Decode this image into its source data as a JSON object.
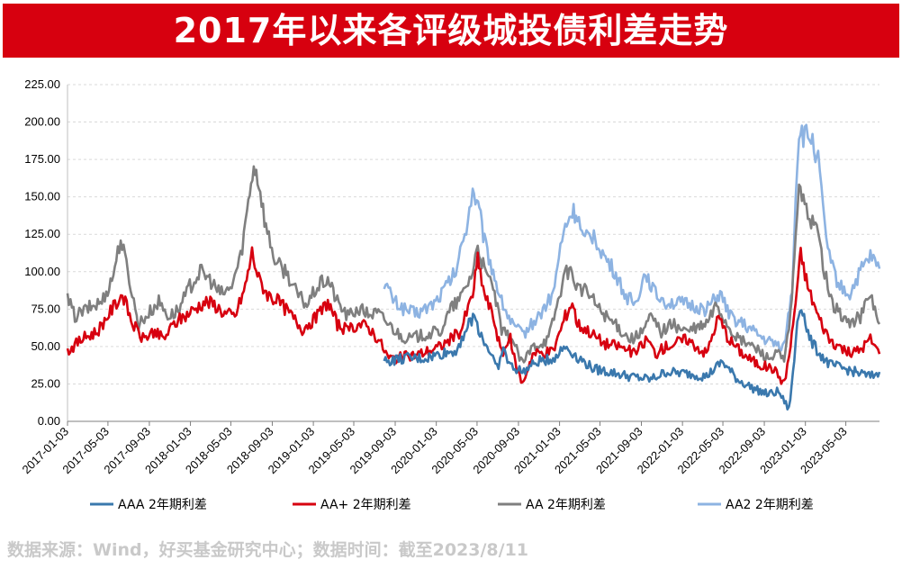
{
  "header": {
    "title": "2017年以来各评级城投债利差走势"
  },
  "footnote": "数据来源：Wind，好买基金研究中心；数据时间：截至2023/8/11",
  "colors": {
    "title_bg": "#d7000f",
    "AAA": "#3a78ad",
    "AA+": "#d7000f",
    "AA": "#7f7f7f",
    "AA2": "#8db3e2"
  },
  "chart_data": {
    "type": "line",
    "title": "",
    "xlabel": "",
    "ylabel": "",
    "ylim": [
      0,
      225
    ],
    "y_ticks": [
      "0.00",
      "25.00",
      "50.00",
      "75.00",
      "100.00",
      "125.00",
      "150.00",
      "175.00",
      "200.00",
      "225.00"
    ],
    "x_ticks": [
      "2017-01-03",
      "2017-05-03",
      "2017-09-03",
      "2018-01-03",
      "2018-05-03",
      "2018-09-03",
      "2019-01-03",
      "2019-05-03",
      "2019-09-03",
      "2020-01-03",
      "2020-05-03",
      "2020-09-03",
      "2021-01-03",
      "2021-05-03",
      "2021-09-03",
      "2022-01-03",
      "2022-05-03",
      "2022-09-03",
      "2023-01-03",
      "2023-05-03"
    ],
    "x_range": [
      "2017-01-03",
      "2023-08-11"
    ],
    "grid": "horizontal-dashed",
    "legend_position": "bottom",
    "series": [
      {
        "name": "AAA 2年期利差",
        "key": "AAA",
        "points": [
          [
            "2019-08-01",
            40
          ],
          [
            "2019-10-01",
            42
          ],
          [
            "2019-12-01",
            42
          ],
          [
            "2020-01-15",
            45
          ],
          [
            "2020-03-01",
            47
          ],
          [
            "2020-04-01",
            62
          ],
          [
            "2020-04-25",
            70
          ],
          [
            "2020-05-20",
            55
          ],
          [
            "2020-06-15",
            45
          ],
          [
            "2020-07-01",
            35
          ],
          [
            "2020-07-20",
            48
          ],
          [
            "2020-08-10",
            37
          ],
          [
            "2020-09-15",
            33
          ],
          [
            "2020-11-01",
            40
          ],
          [
            "2020-12-15",
            42
          ],
          [
            "2021-01-20",
            50
          ],
          [
            "2021-02-15",
            45
          ],
          [
            "2021-03-15",
            40
          ],
          [
            "2021-04-15",
            35
          ],
          [
            "2021-06-01",
            33
          ],
          [
            "2021-08-01",
            30
          ],
          [
            "2021-10-01",
            28
          ],
          [
            "2021-11-15",
            33
          ],
          [
            "2022-01-15",
            32
          ],
          [
            "2022-03-15",
            30
          ],
          [
            "2022-05-01",
            40
          ],
          [
            "2022-06-15",
            28
          ],
          [
            "2022-08-01",
            22
          ],
          [
            "2022-09-15",
            18
          ],
          [
            "2022-10-15",
            20
          ],
          [
            "2022-11-15",
            8
          ],
          [
            "2022-12-01",
            40
          ],
          [
            "2022-12-10",
            68
          ],
          [
            "2022-12-22",
            78
          ],
          [
            "2023-01-15",
            55
          ],
          [
            "2023-02-15",
            45
          ],
          [
            "2023-03-15",
            38
          ],
          [
            "2023-05-01",
            35
          ],
          [
            "2023-06-15",
            32
          ],
          [
            "2023-07-15",
            30
          ],
          [
            "2023-08-11",
            33
          ]
        ]
      },
      {
        "name": "AA+ 2年期利差",
        "key": "AA+",
        "points": [
          [
            "2017-01-03",
            47
          ],
          [
            "2017-02-15",
            55
          ],
          [
            "2017-04-01",
            60
          ],
          [
            "2017-05-15",
            75
          ],
          [
            "2017-06-15",
            85
          ],
          [
            "2017-07-15",
            65
          ],
          [
            "2017-08-15",
            55
          ],
          [
            "2017-09-15",
            60
          ],
          [
            "2017-10-15",
            55
          ],
          [
            "2017-11-15",
            65
          ],
          [
            "2017-12-15",
            70
          ],
          [
            "2018-01-15",
            75
          ],
          [
            "2018-02-15",
            80
          ],
          [
            "2018-03-15",
            78
          ],
          [
            "2018-04-15",
            72
          ],
          [
            "2018-05-15",
            70
          ],
          [
            "2018-06-15",
            90
          ],
          [
            "2018-07-05",
            113
          ],
          [
            "2018-07-25",
            95
          ],
          [
            "2018-08-20",
            85
          ],
          [
            "2018-10-01",
            78
          ],
          [
            "2018-11-01",
            70
          ],
          [
            "2018-12-01",
            62
          ],
          [
            "2019-01-15",
            70
          ],
          [
            "2019-02-15",
            80
          ],
          [
            "2019-03-15",
            65
          ],
          [
            "2019-04-15",
            60
          ],
          [
            "2019-05-15",
            65
          ],
          [
            "2019-06-15",
            63
          ],
          [
            "2019-07-15",
            55
          ],
          [
            "2019-08-15",
            42
          ],
          [
            "2019-10-01",
            43
          ],
          [
            "2019-11-15",
            45
          ],
          [
            "2020-01-15",
            50
          ],
          [
            "2020-02-15",
            55
          ],
          [
            "2020-03-15",
            60
          ],
          [
            "2020-04-20",
            85
          ],
          [
            "2020-05-05",
            108
          ],
          [
            "2020-05-25",
            85
          ],
          [
            "2020-06-20",
            70
          ],
          [
            "2020-07-15",
            45
          ],
          [
            "2020-08-10",
            55
          ],
          [
            "2020-08-25",
            38
          ],
          [
            "2020-09-15",
            25
          ],
          [
            "2020-10-15",
            45
          ],
          [
            "2020-12-15",
            47
          ],
          [
            "2021-01-20",
            70
          ],
          [
            "2021-02-10",
            80
          ],
          [
            "2021-02-25",
            65
          ],
          [
            "2021-04-01",
            60
          ],
          [
            "2021-05-15",
            52
          ],
          [
            "2021-07-01",
            50
          ],
          [
            "2021-08-15",
            45
          ],
          [
            "2021-09-20",
            55
          ],
          [
            "2021-10-15",
            45
          ],
          [
            "2021-11-15",
            50
          ],
          [
            "2022-01-15",
            55
          ],
          [
            "2022-03-15",
            45
          ],
          [
            "2022-04-20",
            70
          ],
          [
            "2022-05-20",
            55
          ],
          [
            "2022-07-01",
            45
          ],
          [
            "2022-08-15",
            38
          ],
          [
            "2022-10-01",
            35
          ],
          [
            "2022-11-01",
            25
          ],
          [
            "2022-11-20",
            50
          ],
          [
            "2022-12-05",
            80
          ],
          [
            "2022-12-20",
            112
          ],
          [
            "2023-01-10",
            90
          ],
          [
            "2023-02-10",
            70
          ],
          [
            "2023-03-15",
            55
          ],
          [
            "2023-04-15",
            50
          ],
          [
            "2023-05-15",
            45
          ],
          [
            "2023-06-15",
            48
          ],
          [
            "2023-07-15",
            55
          ],
          [
            "2023-08-11",
            45
          ]
        ]
      },
      {
        "name": "AA 2年期利差",
        "key": "AA",
        "points": [
          [
            "2017-01-03",
            82
          ],
          [
            "2017-01-25",
            70
          ],
          [
            "2017-03-01",
            75
          ],
          [
            "2017-04-15",
            80
          ],
          [
            "2017-05-15",
            95
          ],
          [
            "2017-06-10",
            122
          ],
          [
            "2017-07-01",
            100
          ],
          [
            "2017-08-01",
            65
          ],
          [
            "2017-09-01",
            72
          ],
          [
            "2017-10-01",
            80
          ],
          [
            "2017-11-01",
            70
          ],
          [
            "2017-12-01",
            75
          ],
          [
            "2018-01-01",
            90
          ],
          [
            "2018-02-01",
            100
          ],
          [
            "2018-03-01",
            95
          ],
          [
            "2018-04-01",
            85
          ],
          [
            "2018-05-01",
            88
          ],
          [
            "2018-06-01",
            110
          ],
          [
            "2018-06-20",
            140
          ],
          [
            "2018-07-10",
            172
          ],
          [
            "2018-07-25",
            160
          ],
          [
            "2018-08-15",
            130
          ],
          [
            "2018-09-15",
            105
          ],
          [
            "2018-10-15",
            100
          ],
          [
            "2018-11-15",
            85
          ],
          [
            "2018-12-15",
            78
          ],
          [
            "2019-01-15",
            90
          ],
          [
            "2019-02-15",
            95
          ],
          [
            "2019-03-15",
            80
          ],
          [
            "2019-04-15",
            70
          ],
          [
            "2019-05-15",
            75
          ],
          [
            "2019-06-15",
            72
          ],
          [
            "2019-07-15",
            72
          ],
          [
            "2019-08-15",
            65
          ],
          [
            "2019-09-15",
            58
          ],
          [
            "2019-10-15",
            55
          ],
          [
            "2019-12-01",
            58
          ],
          [
            "2020-01-15",
            60
          ],
          [
            "2020-02-15",
            75
          ],
          [
            "2020-03-15",
            82
          ],
          [
            "2020-04-20",
            100
          ],
          [
            "2020-05-05",
            118
          ],
          [
            "2020-05-25",
            100
          ],
          [
            "2020-06-20",
            90
          ],
          [
            "2020-07-15",
            60
          ],
          [
            "2020-08-15",
            55
          ],
          [
            "2020-09-15",
            38
          ],
          [
            "2020-10-15",
            50
          ],
          [
            "2020-12-01",
            55
          ],
          [
            "2021-01-15",
            95
          ],
          [
            "2021-02-01",
            102
          ],
          [
            "2021-02-25",
            90
          ],
          [
            "2021-04-01",
            85
          ],
          [
            "2021-05-01",
            75
          ],
          [
            "2021-06-15",
            65
          ],
          [
            "2021-08-01",
            55
          ],
          [
            "2021-09-01",
            58
          ],
          [
            "2021-10-01",
            70
          ],
          [
            "2021-11-01",
            60
          ],
          [
            "2021-12-01",
            65
          ],
          [
            "2022-01-15",
            60
          ],
          [
            "2022-02-15",
            62
          ],
          [
            "2022-03-15",
            65
          ],
          [
            "2022-04-15",
            78
          ],
          [
            "2022-05-15",
            65
          ],
          [
            "2022-06-15",
            55
          ],
          [
            "2022-07-15",
            52
          ],
          [
            "2022-08-15",
            48
          ],
          [
            "2022-09-15",
            42
          ],
          [
            "2022-10-15",
            45
          ],
          [
            "2022-11-01",
            40
          ],
          [
            "2022-11-20",
            70
          ],
          [
            "2022-12-05",
            120
          ],
          [
            "2022-12-15",
            163
          ],
          [
            "2023-01-01",
            140
          ],
          [
            "2023-01-20",
            135
          ],
          [
            "2023-02-10",
            125
          ],
          [
            "2023-03-01",
            100
          ],
          [
            "2023-03-20",
            80
          ],
          [
            "2023-04-15",
            72
          ],
          [
            "2023-05-15",
            65
          ],
          [
            "2023-06-15",
            70
          ],
          [
            "2023-07-15",
            85
          ],
          [
            "2023-08-11",
            65
          ]
        ]
      },
      {
        "name": "AA2 2年期利差",
        "key": "AA2",
        "points": [
          [
            "2019-08-01",
            93
          ],
          [
            "2019-09-01",
            80
          ],
          [
            "2019-10-01",
            75
          ],
          [
            "2019-11-01",
            72
          ],
          [
            "2019-12-01",
            75
          ],
          [
            "2020-01-01",
            80
          ],
          [
            "2020-02-01",
            90
          ],
          [
            "2020-03-01",
            100
          ],
          [
            "2020-04-01",
            130
          ],
          [
            "2020-04-20",
            155
          ],
          [
            "2020-05-10",
            140
          ],
          [
            "2020-05-25",
            120
          ],
          [
            "2020-06-20",
            100
          ],
          [
            "2020-07-15",
            80
          ],
          [
            "2020-08-15",
            65
          ],
          [
            "2020-09-15",
            58
          ],
          [
            "2020-11-01",
            70
          ],
          [
            "2020-12-15",
            85
          ],
          [
            "2021-01-01",
            110
          ],
          [
            "2021-01-20",
            130
          ],
          [
            "2021-02-10",
            140
          ],
          [
            "2021-02-25",
            138
          ],
          [
            "2021-03-15",
            120
          ],
          [
            "2021-04-15",
            125
          ],
          [
            "2021-05-15",
            110
          ],
          [
            "2021-06-15",
            100
          ],
          [
            "2021-07-15",
            85
          ],
          [
            "2021-08-15",
            78
          ],
          [
            "2021-09-15",
            100
          ],
          [
            "2021-10-15",
            85
          ],
          [
            "2021-11-15",
            80
          ],
          [
            "2022-01-15",
            78
          ],
          [
            "2022-03-15",
            75
          ],
          [
            "2022-04-25",
            85
          ],
          [
            "2022-05-25",
            70
          ],
          [
            "2022-07-01",
            65
          ],
          [
            "2022-08-01",
            60
          ],
          [
            "2022-09-01",
            55
          ],
          [
            "2022-10-01",
            52
          ],
          [
            "2022-11-01",
            50
          ],
          [
            "2022-11-25",
            90
          ],
          [
            "2022-12-05",
            150
          ],
          [
            "2022-12-15",
            195
          ],
          [
            "2023-01-01",
            190
          ],
          [
            "2023-01-20",
            190
          ],
          [
            "2023-02-10",
            175
          ],
          [
            "2023-03-01",
            130
          ],
          [
            "2023-03-20",
            105
          ],
          [
            "2023-04-15",
            90
          ],
          [
            "2023-05-15",
            85
          ],
          [
            "2023-06-15",
            100
          ],
          [
            "2023-07-15",
            110
          ],
          [
            "2023-08-11",
            102
          ]
        ]
      }
    ]
  }
}
